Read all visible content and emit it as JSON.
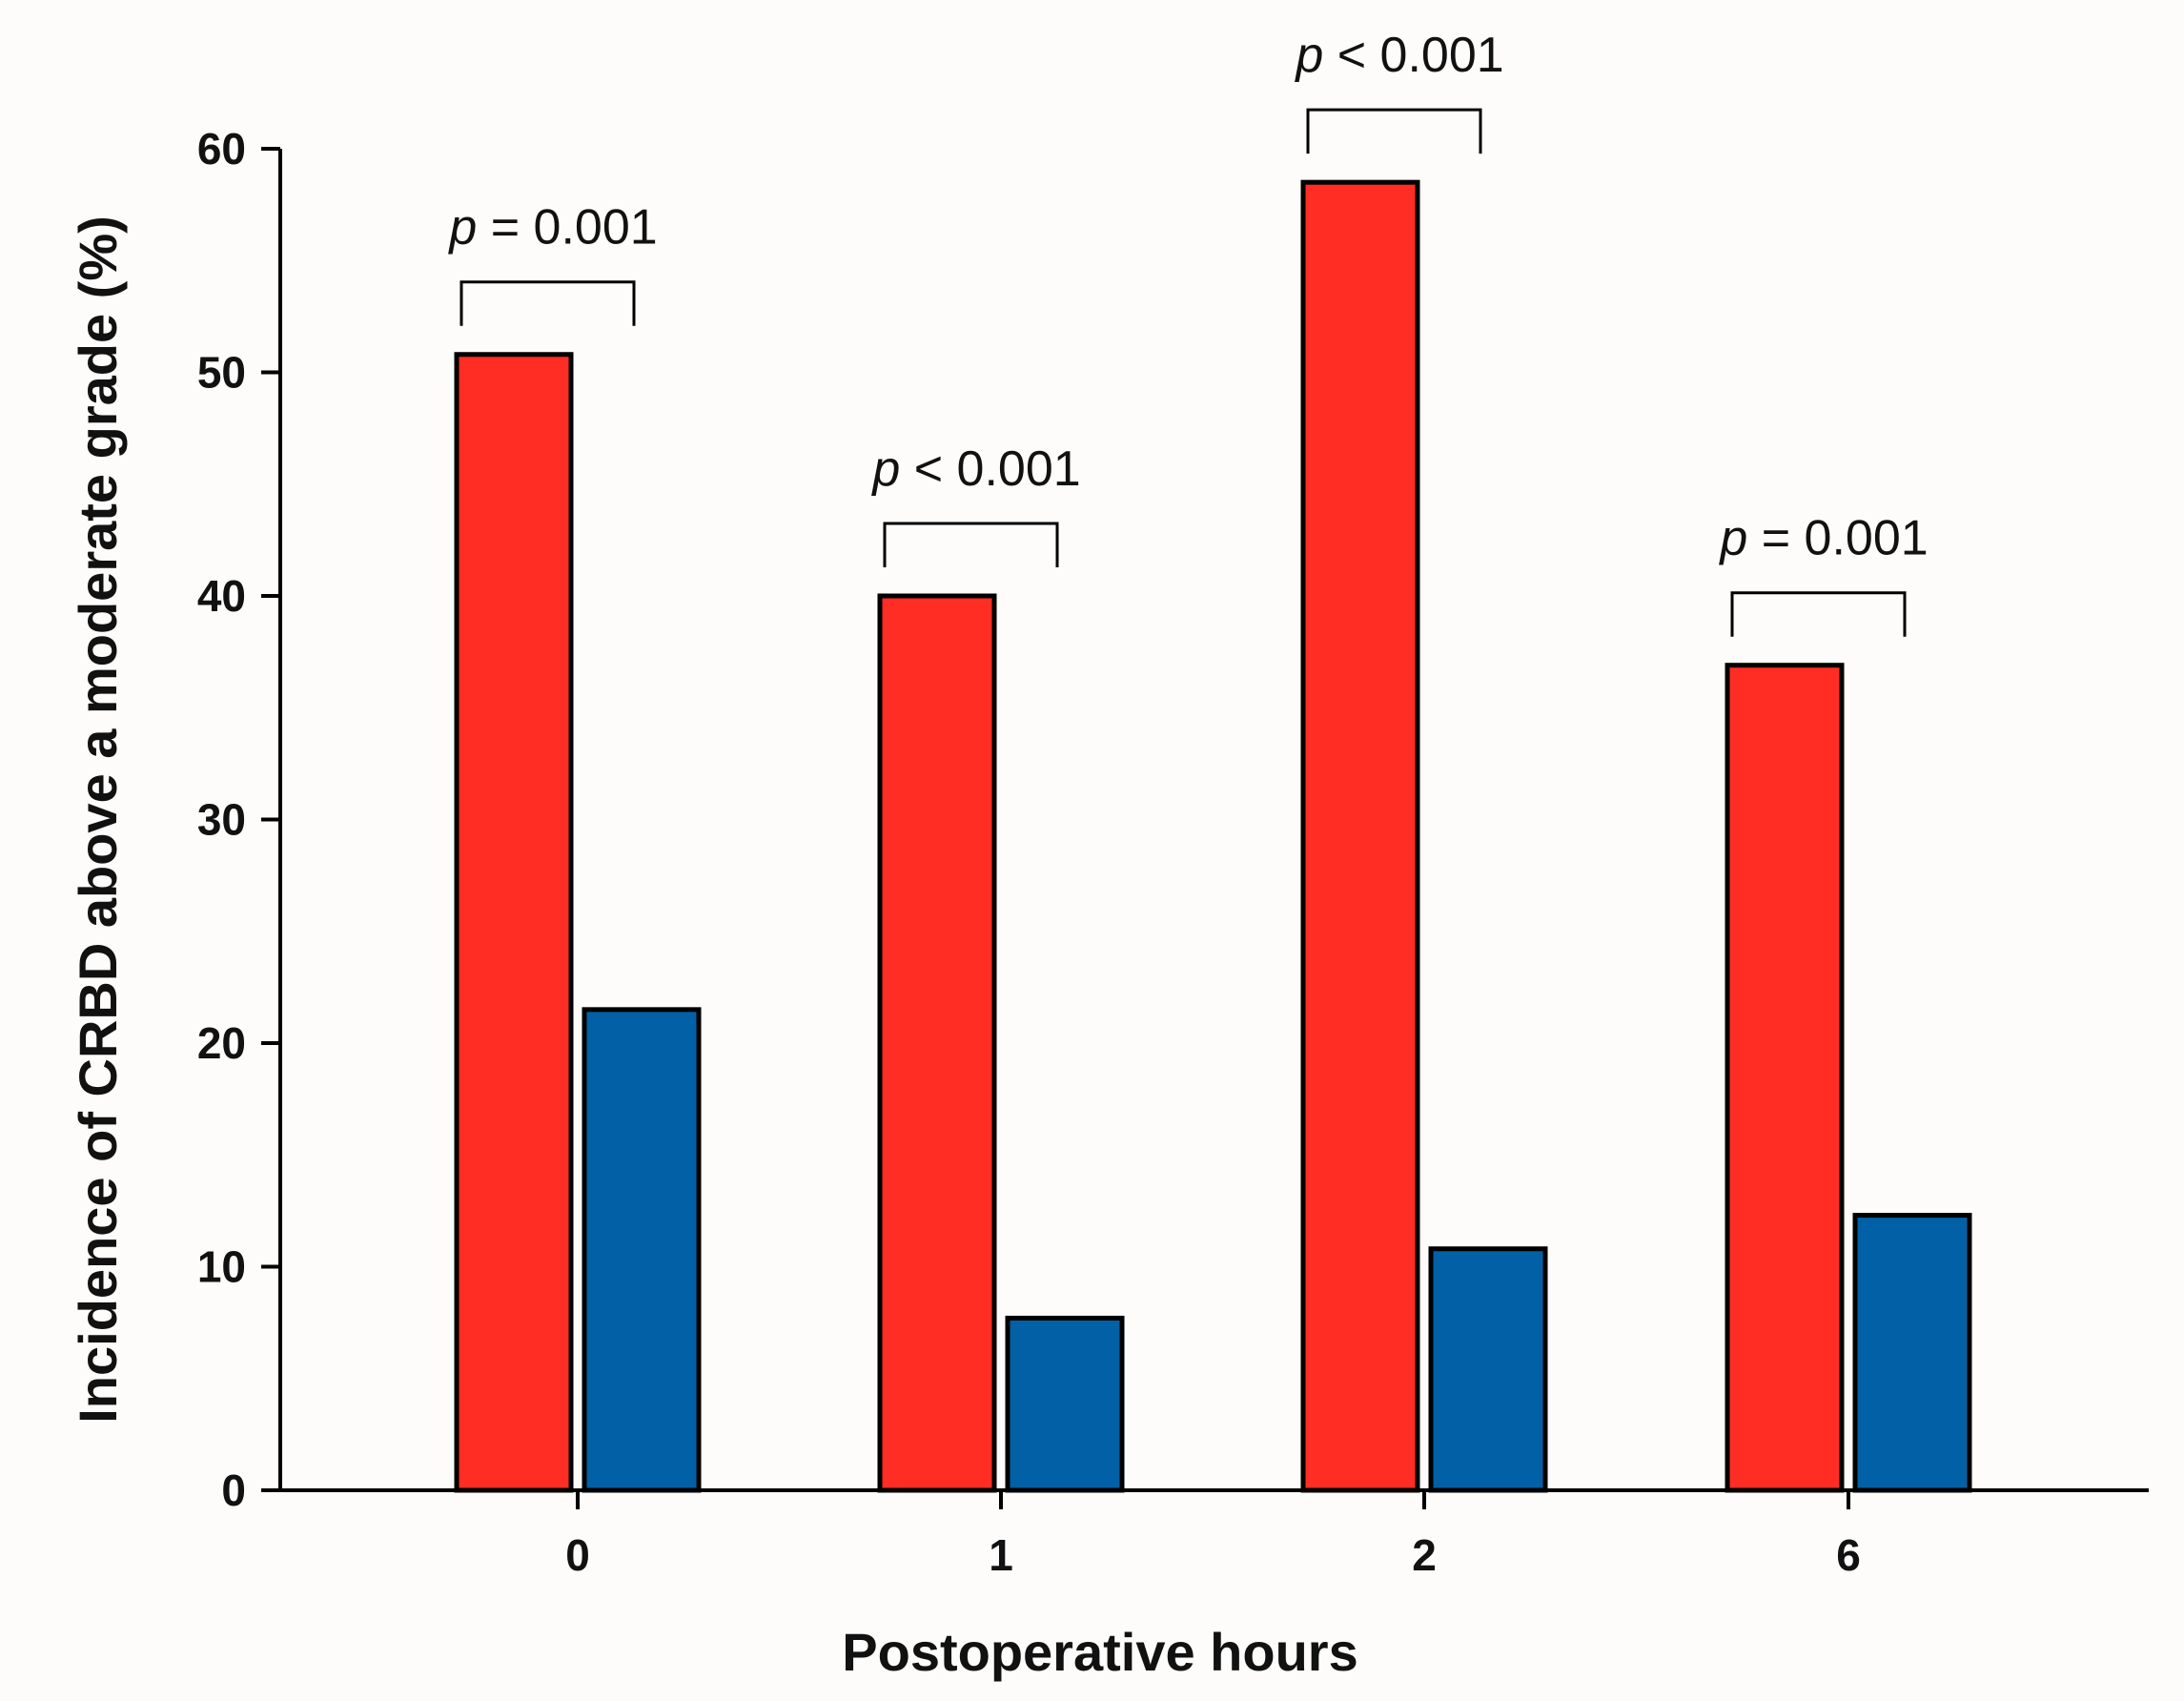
{
  "chart_data": {
    "type": "bar",
    "categories": [
      "0",
      "1",
      "2",
      "6"
    ],
    "series": [
      {
        "values": [
          50.8,
          40.0,
          58.5,
          36.9
        ],
        "color": "#ff2d24"
      },
      {
        "values": [
          21.5,
          7.7,
          10.8,
          12.3
        ],
        "color": "#0261a6"
      }
    ],
    "xlabel": "Postoperative hours",
    "ylabel": "Incidence of CRBD above a moderate grade (%)",
    "ylim": [
      0,
      60
    ],
    "yticks": [
      "0",
      "10",
      "20",
      "30",
      "40",
      "50",
      "60"
    ],
    "grid": false,
    "annotations": [
      {
        "category": "0",
        "p": "p",
        "text": " = 0.001"
      },
      {
        "category": "1",
        "p": "p",
        "text": " < 0.001"
      },
      {
        "category": "2",
        "p": "p",
        "text": " < 0.001"
      },
      {
        "category": "6",
        "p": "p",
        "text": " = 0.001"
      }
    ]
  }
}
